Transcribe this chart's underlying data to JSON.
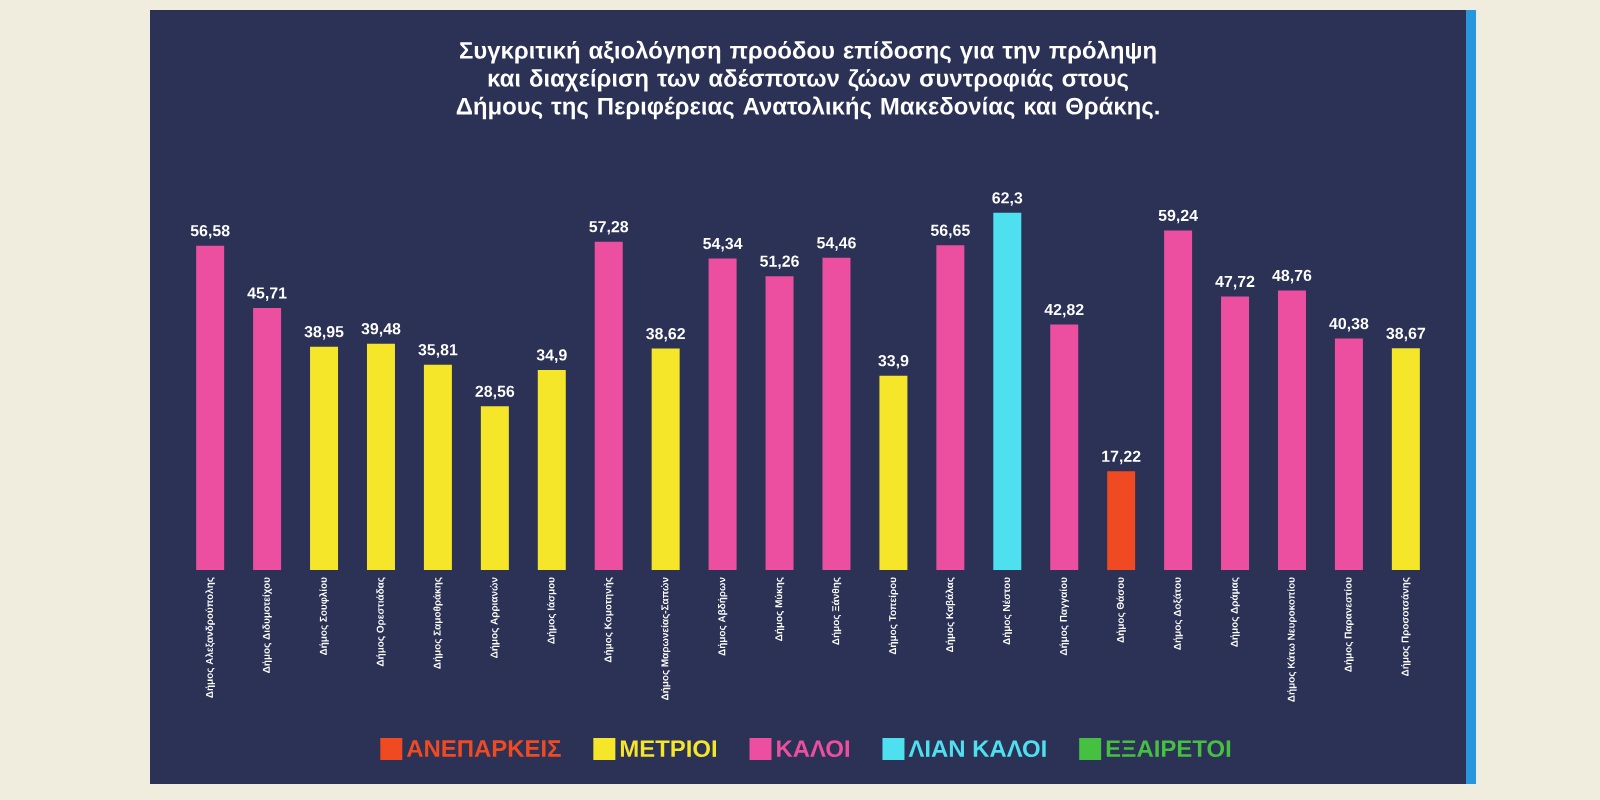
{
  "chart_data": {
    "type": "bar",
    "title": "Συγκριτική αξιολόγηση προόδου επίδοσης για την πρόληψη και διαχείριση των αδέσποτων ζώων συντροφιάς στους Δήμους της Περιφέρειας Ανατολικής Μακεδονίας και Θράκης.",
    "categories": [
      "Δήμος Αλεξανδρούπολης",
      "Δήμος Διδυμοτείχου",
      "Δήμος Σουφλίου",
      "Δήμος Ορεστιάδας",
      "Δήμος Σαμοθράκης",
      "Δήμος Αρριανών",
      "Δήμος Ιάσμου",
      "Δήμος Κομοτηνής",
      "Δήμος Μαρωνείας-Σαπών",
      "Δήμος Αβδήρων",
      "Δήμος Μύκης",
      "Δήμος Ξάνθης",
      "Δήμος Τοπείρου",
      "Δήμος Καβάλας",
      "Δήμος Νέστου",
      "Δήμος Παγγαίου",
      "Δήμος Θάσου",
      "Δήμος Δοξάτου",
      "Δήμος Δράμας",
      "Δήμος Κάτω Νευροκοπίου",
      "Δήμος Παρανεστίου",
      "Δήμος Προσοτσάνης"
    ],
    "series": [
      {
        "name": "ΑΝΕΠΑΡΚΕΙΣ",
        "color": "#f04a22",
        "values": [
          null,
          null,
          null,
          null,
          null,
          null,
          null,
          null,
          null,
          null,
          null,
          null,
          null,
          null,
          null,
          null,
          17.22,
          null,
          null,
          null,
          null,
          null
        ],
        "value_labels": [
          null,
          null,
          null,
          null,
          null,
          null,
          null,
          null,
          null,
          null,
          null,
          null,
          null,
          null,
          null,
          null,
          "17,22",
          null,
          null,
          null,
          null,
          null
        ]
      },
      {
        "name": "ΜΕΤΡΙΟΙ",
        "color": "#f5e62a",
        "values": [
          null,
          null,
          38.95,
          39.48,
          35.81,
          28.56,
          34.9,
          null,
          38.62,
          null,
          null,
          null,
          33.9,
          null,
          null,
          null,
          null,
          null,
          null,
          null,
          null,
          38.67
        ],
        "value_labels": [
          null,
          null,
          "38,95",
          "39,48",
          "35,81",
          "28,56",
          "34,9",
          null,
          "38,62",
          null,
          null,
          null,
          "33,9",
          null,
          null,
          null,
          null,
          null,
          null,
          null,
          null,
          "38,67"
        ]
      },
      {
        "name": "ΚΑΛΟΙ",
        "color": "#ec4f9f",
        "values": [
          56.58,
          45.71,
          null,
          null,
          null,
          null,
          null,
          57.28,
          null,
          54.34,
          51.26,
          54.46,
          null,
          56.65,
          null,
          42.82,
          null,
          59.24,
          47.72,
          48.76,
          40.38,
          null
        ],
        "value_labels": [
          "56,58",
          "45,71",
          null,
          null,
          null,
          null,
          null,
          "57,28",
          null,
          "54,34",
          "51,26",
          "54,46",
          null,
          "56,65",
          null,
          "42,82",
          null,
          "59,24",
          "47,72",
          "48,76",
          "40,38",
          null
        ]
      },
      {
        "name": "ΛΙΑΝ ΚΑΛΟΙ",
        "color": "#4fe0f0",
        "values": [
          null,
          null,
          null,
          null,
          null,
          null,
          null,
          null,
          null,
          null,
          null,
          null,
          null,
          null,
          62.3,
          null,
          null,
          null,
          null,
          null,
          null,
          null
        ],
        "value_labels": [
          null,
          null,
          null,
          null,
          null,
          null,
          null,
          null,
          null,
          null,
          null,
          null,
          null,
          null,
          "62,3",
          null,
          null,
          null,
          null,
          null,
          null,
          null
        ]
      },
      {
        "name": "ΕΞΑΙΡΕΤΟΙ",
        "color": "#45c040",
        "values": [
          null,
          null,
          null,
          null,
          null,
          null,
          null,
          null,
          null,
          null,
          null,
          null,
          null,
          null,
          null,
          null,
          null,
          null,
          null,
          null,
          null,
          null
        ],
        "value_labels": [
          null,
          null,
          null,
          null,
          null,
          null,
          null,
          null,
          null,
          null,
          null,
          null,
          null,
          null,
          null,
          null,
          null,
          null,
          null,
          null,
          null,
          null
        ]
      }
    ],
    "legend": "bottom"
  }
}
